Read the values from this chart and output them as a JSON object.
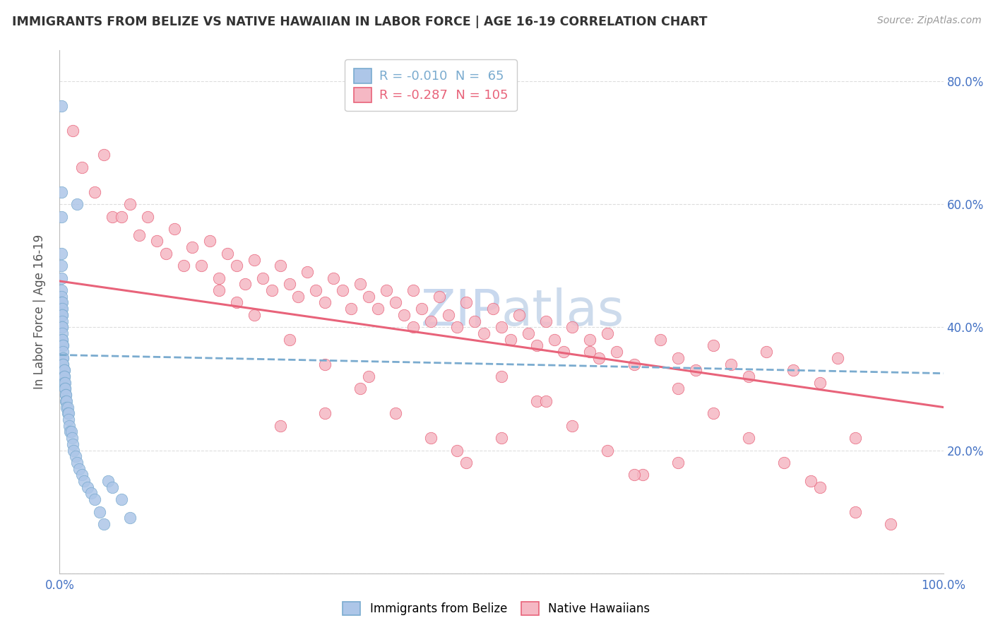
{
  "title": "IMMIGRANTS FROM BELIZE VS NATIVE HAWAIIAN IN LABOR FORCE | AGE 16-19 CORRELATION CHART",
  "source": "Source: ZipAtlas.com",
  "ylabel": "In Labor Force | Age 16-19",
  "xlim": [
    0.0,
    1.0
  ],
  "ylim": [
    0.0,
    0.85
  ],
  "belize_R": -0.01,
  "belize_N": 65,
  "hawaiian_R": -0.287,
  "hawaiian_N": 105,
  "belize_color": "#adc6e8",
  "hawaiian_color": "#f5b8c4",
  "belize_line_color": "#7aabcf",
  "hawaiian_line_color": "#e8637a",
  "background_color": "#ffffff",
  "grid_color": "#dddddd",
  "watermark_color": "#c8d8ee",
  "legend_belize": "R = -0.010  N =  65",
  "legend_hawaiian": "R = -0.287  N = 105",
  "belize_x": [
    0.002,
    0.002,
    0.002,
    0.002,
    0.002,
    0.002,
    0.002,
    0.002,
    0.002,
    0.002,
    0.003,
    0.003,
    0.003,
    0.003,
    0.003,
    0.003,
    0.003,
    0.003,
    0.003,
    0.003,
    0.004,
    0.004,
    0.004,
    0.004,
    0.004,
    0.004,
    0.004,
    0.005,
    0.005,
    0.005,
    0.005,
    0.005,
    0.006,
    0.006,
    0.006,
    0.007,
    0.007,
    0.007,
    0.008,
    0.008,
    0.009,
    0.009,
    0.01,
    0.01,
    0.011,
    0.012,
    0.013,
    0.014,
    0.015,
    0.016,
    0.018,
    0.02,
    0.022,
    0.025,
    0.028,
    0.032,
    0.036,
    0.04,
    0.045,
    0.05,
    0.055,
    0.06,
    0.07,
    0.08,
    0.02
  ],
  "belize_y": [
    0.76,
    0.62,
    0.58,
    0.52,
    0.5,
    0.48,
    0.46,
    0.45,
    0.44,
    0.43,
    0.44,
    0.43,
    0.42,
    0.42,
    0.41,
    0.4,
    0.4,
    0.39,
    0.38,
    0.38,
    0.37,
    0.37,
    0.36,
    0.35,
    0.35,
    0.34,
    0.34,
    0.33,
    0.33,
    0.32,
    0.32,
    0.31,
    0.31,
    0.3,
    0.3,
    0.29,
    0.29,
    0.28,
    0.28,
    0.27,
    0.27,
    0.26,
    0.26,
    0.25,
    0.24,
    0.23,
    0.23,
    0.22,
    0.21,
    0.2,
    0.19,
    0.18,
    0.17,
    0.16,
    0.15,
    0.14,
    0.13,
    0.12,
    0.1,
    0.08,
    0.15,
    0.14,
    0.12,
    0.09,
    0.6
  ],
  "hawaiian_x": [
    0.015,
    0.025,
    0.04,
    0.05,
    0.06,
    0.08,
    0.09,
    0.1,
    0.12,
    0.13,
    0.15,
    0.16,
    0.17,
    0.18,
    0.19,
    0.2,
    0.21,
    0.22,
    0.23,
    0.24,
    0.25,
    0.26,
    0.27,
    0.28,
    0.29,
    0.3,
    0.31,
    0.32,
    0.33,
    0.34,
    0.35,
    0.36,
    0.37,
    0.38,
    0.39,
    0.4,
    0.41,
    0.42,
    0.43,
    0.44,
    0.45,
    0.46,
    0.47,
    0.48,
    0.49,
    0.5,
    0.51,
    0.52,
    0.53,
    0.54,
    0.55,
    0.56,
    0.57,
    0.58,
    0.6,
    0.61,
    0.62,
    0.63,
    0.65,
    0.68,
    0.7,
    0.72,
    0.74,
    0.76,
    0.78,
    0.8,
    0.83,
    0.86,
    0.88,
    0.9,
    0.07,
    0.11,
    0.14,
    0.18,
    0.22,
    0.26,
    0.3,
    0.34,
    0.38,
    0.42,
    0.46,
    0.5,
    0.54,
    0.58,
    0.62,
    0.66,
    0.7,
    0.74,
    0.78,
    0.82,
    0.86,
    0.9,
    0.94,
    0.2,
    0.4,
    0.6,
    0.35,
    0.55,
    0.25,
    0.45,
    0.65,
    0.3,
    0.5,
    0.7,
    0.85
  ],
  "hawaiian_y": [
    0.72,
    0.66,
    0.62,
    0.68,
    0.58,
    0.6,
    0.55,
    0.58,
    0.52,
    0.56,
    0.53,
    0.5,
    0.54,
    0.48,
    0.52,
    0.5,
    0.47,
    0.51,
    0.48,
    0.46,
    0.5,
    0.47,
    0.45,
    0.49,
    0.46,
    0.44,
    0.48,
    0.46,
    0.43,
    0.47,
    0.45,
    0.43,
    0.46,
    0.44,
    0.42,
    0.46,
    0.43,
    0.41,
    0.45,
    0.42,
    0.4,
    0.44,
    0.41,
    0.39,
    0.43,
    0.4,
    0.38,
    0.42,
    0.39,
    0.37,
    0.41,
    0.38,
    0.36,
    0.4,
    0.38,
    0.35,
    0.39,
    0.36,
    0.34,
    0.38,
    0.35,
    0.33,
    0.37,
    0.34,
    0.32,
    0.36,
    0.33,
    0.31,
    0.35,
    0.22,
    0.58,
    0.54,
    0.5,
    0.46,
    0.42,
    0.38,
    0.34,
    0.3,
    0.26,
    0.22,
    0.18,
    0.32,
    0.28,
    0.24,
    0.2,
    0.16,
    0.3,
    0.26,
    0.22,
    0.18,
    0.14,
    0.1,
    0.08,
    0.44,
    0.4,
    0.36,
    0.32,
    0.28,
    0.24,
    0.2,
    0.16,
    0.26,
    0.22,
    0.18,
    0.15
  ]
}
